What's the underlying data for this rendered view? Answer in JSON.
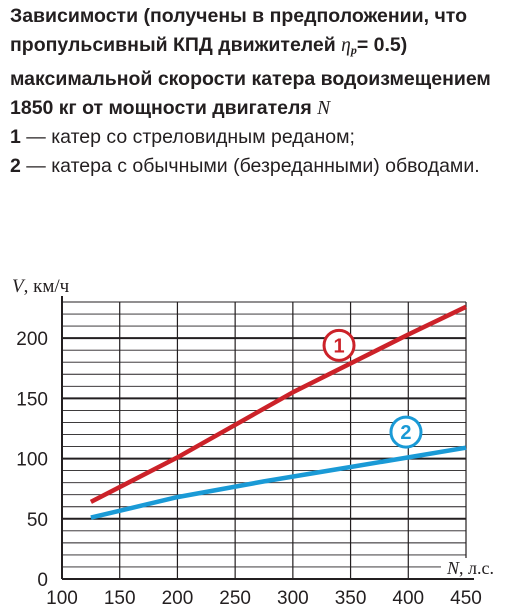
{
  "caption": {
    "title_part1": "Зависимости (получены в предположении, что пропульсивный КПД движителей ",
    "eta_symbol": "η",
    "eta_sub": "p",
    "title_part2": "= 0.5) максимальной скорости катера водоизмещением 1850 кг от мощности двигателя ",
    "title_var": "N",
    "legend": [
      {
        "num": "1",
        "text": " — катер со стреловидным реданом;"
      },
      {
        "num": "2",
        "text": " — катера с обычными (безреданными) обводами."
      }
    ]
  },
  "chart_data": {
    "type": "line",
    "ylabel_var": "V",
    "ylabel_unit": ", км/ч",
    "xlabel_var": "N",
    "xlabel_unit": ", л.с.",
    "xlim": [
      100,
      450
    ],
    "ylim": [
      0,
      230
    ],
    "x_ticks": [
      100,
      150,
      200,
      250,
      300,
      350,
      400,
      450
    ],
    "y_ticks": [
      0,
      50,
      100,
      150,
      200
    ],
    "x_minor_step": 50,
    "y_minor_step": 10,
    "grid": true,
    "series": [
      {
        "name": "1",
        "color": "#cc2229",
        "points": [
          [
            125,
            64
          ],
          [
            200,
            101
          ],
          [
            300,
            155
          ],
          [
            400,
            203
          ],
          [
            450,
            226
          ]
        ]
      },
      {
        "name": "2",
        "color": "#1a9ad6",
        "points": [
          [
            125,
            51
          ],
          [
            200,
            68
          ],
          [
            275,
            81
          ],
          [
            350,
            93
          ],
          [
            400,
            101
          ],
          [
            450,
            109
          ]
        ]
      }
    ],
    "series_labels": [
      {
        "text": "1",
        "x": 340,
        "y": 194
      },
      {
        "text": "2",
        "x": 398,
        "y": 122
      }
    ]
  }
}
